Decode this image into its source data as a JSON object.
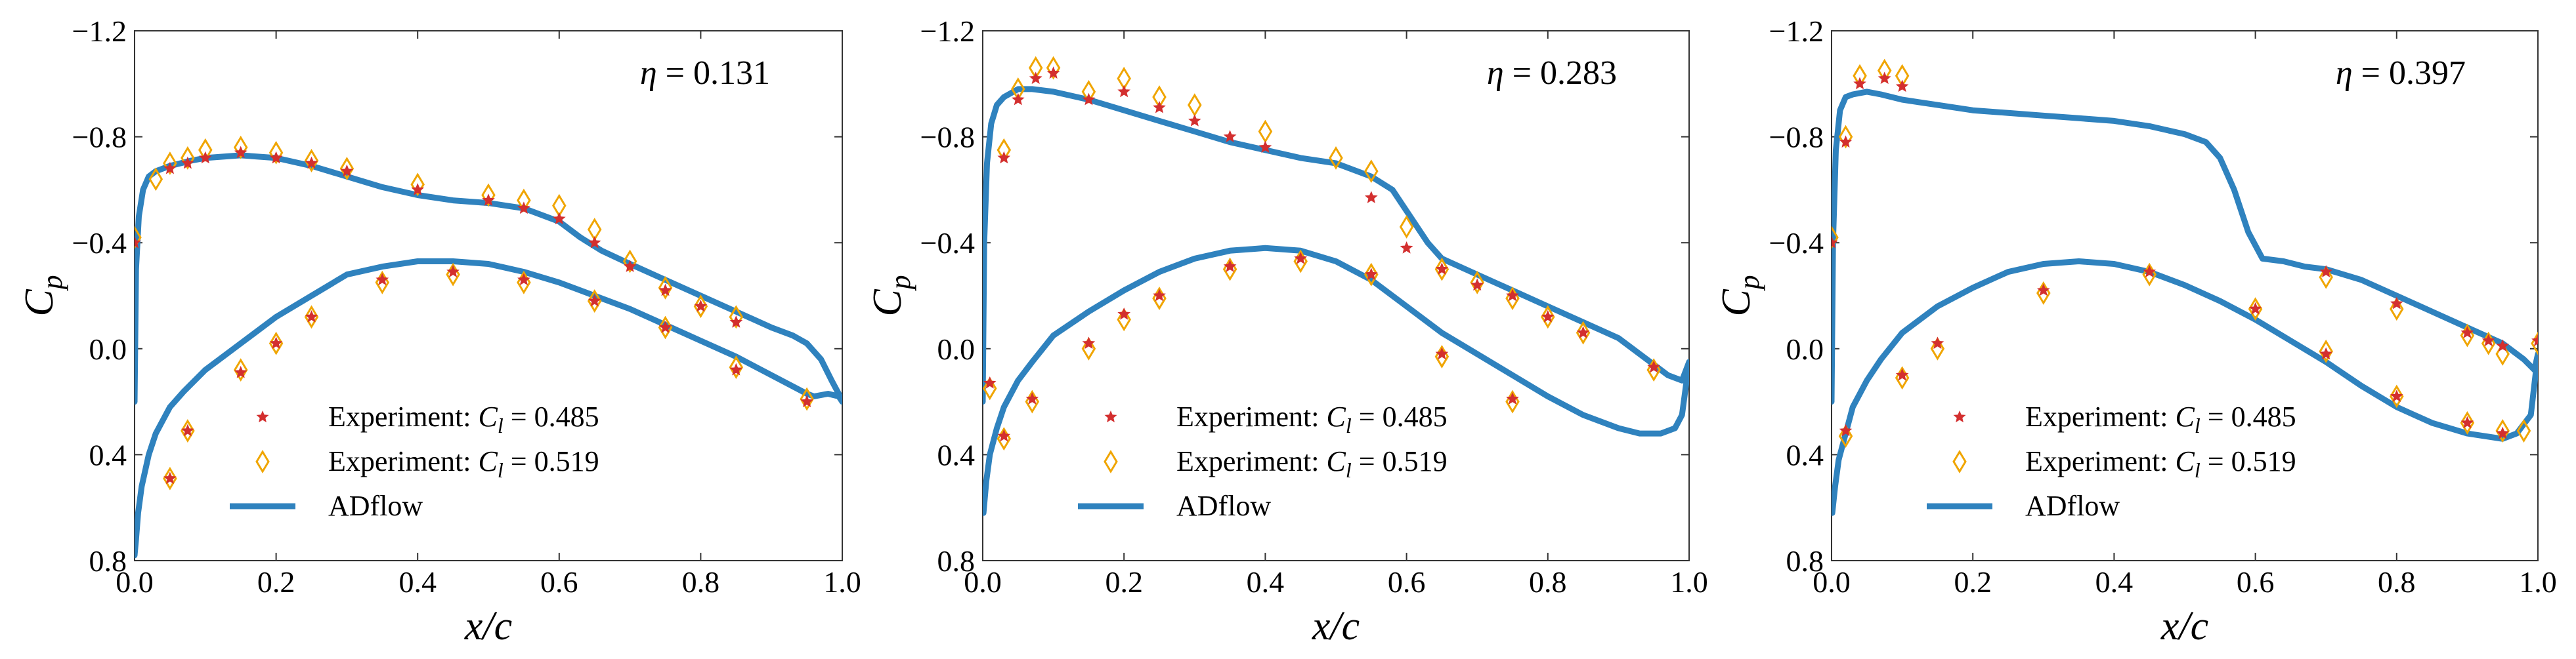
{
  "colors": {
    "adflow": "#2f82be",
    "exp1": "#d32f2f",
    "exp2": "#f0a500"
  },
  "chart_data": [
    {
      "type": "line",
      "eta_symbol": "η",
      "eta_equals": " = ",
      "eta_value": "0.131",
      "xlabel": "x/c",
      "ylabel_main": "C",
      "ylabel_sub": "p",
      "xlim": [
        0.0,
        1.0
      ],
      "ylim": [
        0.8,
        -1.2
      ],
      "xticks": [
        0.0,
        0.2,
        0.4,
        0.6,
        0.8,
        1.0
      ],
      "xtick_labels": [
        "0.0",
        "0.2",
        "0.4",
        "0.6",
        "0.8",
        "1.0"
      ],
      "yticks": [
        -1.2,
        -0.8,
        -0.4,
        0.0,
        0.4,
        0.8
      ],
      "ytick_labels": [
        "−1.2",
        "−0.8",
        "−0.4",
        "0.0",
        "0.4",
        "0.8"
      ],
      "legend": [
        {
          "label_prefix": "Experiment: ",
          "cl_symbol": "C",
          "cl_sub": "l",
          "label_suffix": " = 0.485",
          "marker": "star"
        },
        {
          "label_prefix": "Experiment: ",
          "cl_symbol": "C",
          "cl_sub": "l",
          "label_suffix": " = 0.519",
          "marker": "diamond"
        },
        {
          "label": "ADflow",
          "marker": "line"
        }
      ],
      "series": [
        {
          "name": "ADflow",
          "kind": "line",
          "x": [
            0.0,
            0.002,
            0.006,
            0.012,
            0.02,
            0.03,
            0.05,
            0.08,
            0.1,
            0.15,
            0.2,
            0.25,
            0.3,
            0.35,
            0.4,
            0.45,
            0.5,
            0.55,
            0.6,
            0.63,
            0.66,
            0.7,
            0.75,
            0.8,
            0.85,
            0.9,
            0.93,
            0.95,
            0.97,
            0.985,
            0.995,
            1.0,
            0.995,
            0.98,
            0.96,
            0.95,
            0.9,
            0.85,
            0.8,
            0.75,
            0.7,
            0.65,
            0.6,
            0.55,
            0.5,
            0.45,
            0.4,
            0.35,
            0.3,
            0.25,
            0.2,
            0.15,
            0.1,
            0.07,
            0.05,
            0.03,
            0.02,
            0.01,
            0.005,
            0.002,
            0.0
          ],
          "y": [
            0.2,
            -0.3,
            -0.5,
            -0.6,
            -0.65,
            -0.67,
            -0.69,
            -0.71,
            -0.72,
            -0.73,
            -0.72,
            -0.69,
            -0.65,
            -0.61,
            -0.58,
            -0.56,
            -0.55,
            -0.53,
            -0.48,
            -0.42,
            -0.37,
            -0.32,
            -0.26,
            -0.2,
            -0.14,
            -0.08,
            -0.05,
            -0.02,
            0.04,
            0.12,
            0.17,
            0.2,
            0.18,
            0.17,
            0.18,
            0.17,
            0.1,
            0.03,
            -0.03,
            -0.09,
            -0.15,
            -0.2,
            -0.25,
            -0.29,
            -0.32,
            -0.33,
            -0.33,
            -0.31,
            -0.28,
            -0.2,
            -0.12,
            -0.02,
            0.08,
            0.16,
            0.22,
            0.32,
            0.4,
            0.52,
            0.62,
            0.72,
            0.78
          ]
        },
        {
          "name": "Experiment: Cl = 0.485",
          "kind": "star",
          "x": [
            0.0,
            0.05,
            0.075,
            0.1,
            0.15,
            0.2,
            0.25,
            0.3,
            0.4,
            0.5,
            0.55,
            0.6,
            0.65,
            0.7,
            0.75,
            0.8,
            0.85,
            0.95,
            0.05,
            0.075,
            0.15,
            0.2,
            0.25,
            0.35,
            0.45,
            0.55,
            0.65,
            0.75,
            0.85
          ],
          "y": [
            -0.4,
            -0.68,
            -0.7,
            -0.72,
            -0.74,
            -0.72,
            -0.7,
            -0.67,
            -0.6,
            -0.56,
            -0.53,
            -0.49,
            -0.4,
            -0.31,
            -0.22,
            -0.16,
            -0.1,
            0.2,
            0.49,
            0.31,
            0.09,
            -0.02,
            -0.12,
            -0.26,
            -0.29,
            -0.26,
            -0.18,
            -0.08,
            0.08
          ]
        },
        {
          "name": "Experiment: Cl = 0.519",
          "kind": "diamond",
          "x": [
            0.0,
            0.03,
            0.05,
            0.075,
            0.1,
            0.15,
            0.2,
            0.25,
            0.3,
            0.4,
            0.5,
            0.55,
            0.6,
            0.65,
            0.7,
            0.75,
            0.8,
            0.85,
            0.95,
            0.05,
            0.075,
            0.15,
            0.2,
            0.25,
            0.35,
            0.45,
            0.55,
            0.65,
            0.75,
            0.85
          ],
          "y": [
            -0.42,
            -0.64,
            -0.7,
            -0.72,
            -0.75,
            -0.76,
            -0.74,
            -0.71,
            -0.68,
            -0.62,
            -0.58,
            -0.56,
            -0.54,
            -0.45,
            -0.33,
            -0.23,
            -0.16,
            -0.12,
            0.19,
            0.49,
            0.31,
            0.08,
            -0.02,
            -0.12,
            -0.25,
            -0.28,
            -0.25,
            -0.18,
            -0.08,
            0.07
          ]
        }
      ]
    },
    {
      "type": "line",
      "eta_symbol": "η",
      "eta_equals": " = ",
      "eta_value": "0.283",
      "xlabel": "x/c",
      "ylabel_main": "C",
      "ylabel_sub": "p",
      "xlim": [
        0.0,
        1.0
      ],
      "ylim": [
        0.8,
        -1.2
      ],
      "xticks": [
        0.0,
        0.2,
        0.4,
        0.6,
        0.8,
        1.0
      ],
      "xtick_labels": [
        "0.0",
        "0.2",
        "0.4",
        "0.6",
        "0.8",
        "1.0"
      ],
      "yticks": [
        -1.2,
        -0.8,
        -0.4,
        0.0,
        0.4,
        0.8
      ],
      "ytick_labels": [
        "−1.2",
        "−0.8",
        "−0.4",
        "0.0",
        "0.4",
        "0.8"
      ],
      "legend": [
        {
          "label_prefix": "Experiment: ",
          "cl_symbol": "C",
          "cl_sub": "l",
          "label_suffix": " = 0.485",
          "marker": "star"
        },
        {
          "label_prefix": "Experiment: ",
          "cl_symbol": "C",
          "cl_sub": "l",
          "label_suffix": " = 0.519",
          "marker": "diamond"
        },
        {
          "label": "ADflow",
          "marker": "line"
        }
      ],
      "series": [
        {
          "name": "ADflow",
          "kind": "line",
          "x": [
            0.0,
            0.002,
            0.006,
            0.012,
            0.02,
            0.03,
            0.05,
            0.07,
            0.1,
            0.15,
            0.2,
            0.25,
            0.3,
            0.35,
            0.4,
            0.45,
            0.5,
            0.55,
            0.58,
            0.6,
            0.63,
            0.65,
            0.7,
            0.75,
            0.8,
            0.85,
            0.9,
            0.95,
            0.97,
            0.99,
            1.0,
            0.99,
            0.98,
            0.96,
            0.93,
            0.9,
            0.85,
            0.8,
            0.75,
            0.7,
            0.65,
            0.6,
            0.55,
            0.5,
            0.45,
            0.4,
            0.35,
            0.3,
            0.25,
            0.2,
            0.15,
            0.1,
            0.07,
            0.05,
            0.03,
            0.02,
            0.01,
            0.005,
            0.001
          ],
          "y": [
            0.2,
            -0.4,
            -0.7,
            -0.85,
            -0.92,
            -0.95,
            -0.98,
            -0.98,
            -0.97,
            -0.94,
            -0.9,
            -0.86,
            -0.82,
            -0.78,
            -0.75,
            -0.72,
            -0.7,
            -0.65,
            -0.6,
            -0.52,
            -0.4,
            -0.34,
            -0.28,
            -0.22,
            -0.16,
            -0.1,
            -0.04,
            0.06,
            0.1,
            0.12,
            0.05,
            0.25,
            0.3,
            0.32,
            0.32,
            0.3,
            0.25,
            0.18,
            0.1,
            0.02,
            -0.06,
            -0.16,
            -0.26,
            -0.33,
            -0.37,
            -0.38,
            -0.37,
            -0.34,
            -0.29,
            -0.22,
            -0.14,
            -0.05,
            0.05,
            0.12,
            0.22,
            0.3,
            0.4,
            0.5,
            0.62
          ]
        },
        {
          "name": "Experiment: Cl = 0.485",
          "kind": "star",
          "x": [
            0.01,
            0.03,
            0.05,
            0.075,
            0.1,
            0.15,
            0.2,
            0.25,
            0.3,
            0.35,
            0.4,
            0.55,
            0.6,
            0.65,
            0.7,
            0.75,
            0.8,
            0.85,
            0.95,
            0.03,
            0.07,
            0.15,
            0.2,
            0.25,
            0.35,
            0.45,
            0.55,
            0.65,
            0.75
          ],
          "y": [
            0.13,
            -0.72,
            -0.94,
            -1.02,
            -1.04,
            -0.94,
            -0.97,
            -0.91,
            -0.86,
            -0.8,
            -0.76,
            -0.57,
            -0.38,
            -0.3,
            -0.24,
            -0.2,
            -0.12,
            -0.06,
            0.07,
            0.33,
            0.19,
            -0.02,
            -0.13,
            -0.2,
            -0.31,
            -0.34,
            -0.28,
            0.02,
            0.19
          ]
        },
        {
          "name": "Experiment: Cl = 0.519",
          "kind": "diamond",
          "x": [
            0.01,
            0.03,
            0.05,
            0.075,
            0.1,
            0.15,
            0.2,
            0.25,
            0.3,
            0.4,
            0.5,
            0.55,
            0.6,
            0.65,
            0.7,
            0.75,
            0.8,
            0.85,
            0.95,
            0.03,
            0.07,
            0.15,
            0.2,
            0.25,
            0.35,
            0.45,
            0.55,
            0.65,
            0.75
          ],
          "y": [
            0.15,
            -0.75,
            -0.98,
            -1.06,
            -1.06,
            -0.97,
            -1.02,
            -0.95,
            -0.92,
            -0.82,
            -0.72,
            -0.67,
            -0.46,
            -0.3,
            -0.25,
            -0.19,
            -0.12,
            -0.06,
            0.08,
            0.34,
            0.2,
            0.0,
            -0.11,
            -0.19,
            -0.3,
            -0.33,
            -0.28,
            0.03,
            0.2
          ]
        }
      ]
    },
    {
      "type": "line",
      "eta_symbol": "η",
      "eta_equals": " = ",
      "eta_value": "0.397",
      "xlabel": "x/c",
      "ylabel_main": "C",
      "ylabel_sub": "p",
      "xlim": [
        0.0,
        1.0
      ],
      "ylim": [
        0.8,
        -1.2
      ],
      "xticks": [
        0.0,
        0.2,
        0.4,
        0.6,
        0.8,
        1.0
      ],
      "xtick_labels": [
        "0.0",
        "0.2",
        "0.4",
        "0.6",
        "0.8",
        "1.0"
      ],
      "yticks": [
        -1.2,
        -0.8,
        -0.4,
        0.0,
        0.4,
        0.8
      ],
      "ytick_labels": [
        "−1.2",
        "−0.8",
        "−0.4",
        "0.0",
        "0.4",
        "0.8"
      ],
      "legend": [
        {
          "label_prefix": "Experiment: ",
          "cl_symbol": "C",
          "cl_sub": "l",
          "label_suffix": " = 0.485",
          "marker": "star"
        },
        {
          "label_prefix": "Experiment: ",
          "cl_symbol": "C",
          "cl_sub": "l",
          "label_suffix": " = 0.519",
          "marker": "diamond"
        },
        {
          "label": "ADflow",
          "marker": "line"
        }
      ],
      "series": [
        {
          "name": "ADflow",
          "kind": "line",
          "x": [
            0.0,
            0.002,
            0.006,
            0.012,
            0.02,
            0.03,
            0.05,
            0.07,
            0.1,
            0.15,
            0.2,
            0.25,
            0.3,
            0.35,
            0.4,
            0.45,
            0.5,
            0.53,
            0.55,
            0.57,
            0.59,
            0.61,
            0.64,
            0.67,
            0.7,
            0.75,
            0.8,
            0.85,
            0.9,
            0.95,
            0.98,
            0.995,
            1.0,
            0.99,
            0.97,
            0.95,
            0.9,
            0.85,
            0.8,
            0.75,
            0.7,
            0.65,
            0.6,
            0.55,
            0.5,
            0.45,
            0.4,
            0.35,
            0.3,
            0.25,
            0.2,
            0.15,
            0.1,
            0.07,
            0.05,
            0.03,
            0.02,
            0.01,
            0.005,
            0.001
          ],
          "y": [
            0.2,
            -0.4,
            -0.75,
            -0.9,
            -0.95,
            -0.96,
            -0.97,
            -0.96,
            -0.94,
            -0.92,
            -0.9,
            -0.89,
            -0.88,
            -0.87,
            -0.86,
            -0.84,
            -0.81,
            -0.78,
            -0.72,
            -0.6,
            -0.44,
            -0.34,
            -0.33,
            -0.31,
            -0.3,
            -0.26,
            -0.2,
            -0.14,
            -0.08,
            -0.02,
            0.04,
            0.08,
            0.02,
            0.25,
            0.32,
            0.34,
            0.32,
            0.28,
            0.22,
            0.14,
            0.05,
            -0.03,
            -0.11,
            -0.18,
            -0.24,
            -0.29,
            -0.32,
            -0.33,
            -0.32,
            -0.29,
            -0.23,
            -0.16,
            -0.06,
            0.04,
            0.12,
            0.22,
            0.32,
            0.42,
            0.52,
            0.62
          ]
        },
        {
          "name": "Experiment: Cl = 0.485",
          "kind": "star",
          "x": [
            0.0,
            0.02,
            0.04,
            0.075,
            0.1,
            0.7,
            0.8,
            0.9,
            0.93,
            0.95,
            1.0,
            0.02,
            0.1,
            0.15,
            0.3,
            0.45,
            0.6,
            0.7,
            0.8,
            0.9,
            0.95
          ],
          "y": [
            -0.4,
            -0.78,
            -1.0,
            -1.02,
            -0.99,
            -0.29,
            -0.17,
            -0.06,
            -0.03,
            -0.01,
            -0.03,
            0.31,
            0.1,
            -0.02,
            -0.22,
            -0.29,
            -0.15,
            0.02,
            0.18,
            0.28,
            0.32
          ]
        },
        {
          "name": "Experiment: Cl = 0.519",
          "kind": "diamond",
          "x": [
            0.0,
            0.02,
            0.04,
            0.075,
            0.1,
            0.7,
            0.8,
            0.9,
            0.93,
            0.95,
            1.0,
            0.02,
            0.1,
            0.15,
            0.3,
            0.45,
            0.6,
            0.7,
            0.8,
            0.9,
            0.95,
            0.98
          ],
          "y": [
            -0.42,
            -0.8,
            -1.03,
            -1.05,
            -1.03,
            -0.27,
            -0.15,
            -0.05,
            -0.02,
            0.02,
            -0.02,
            0.33,
            0.11,
            0.0,
            -0.21,
            -0.28,
            -0.15,
            0.01,
            0.18,
            0.28,
            0.31,
            0.31
          ]
        }
      ]
    }
  ]
}
